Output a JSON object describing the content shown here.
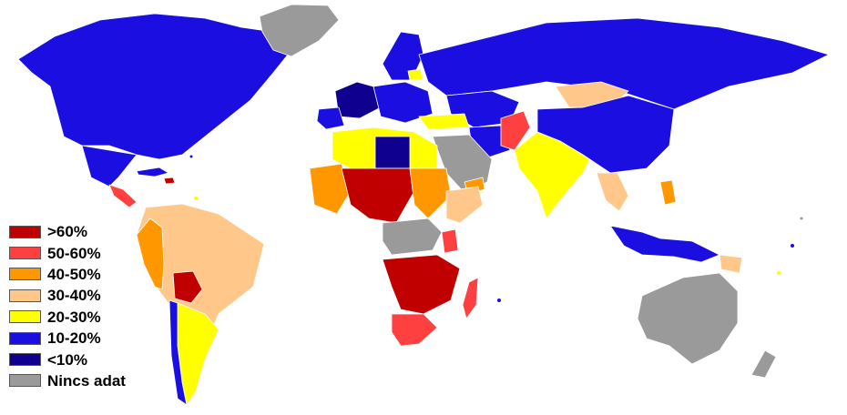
{
  "legend": {
    "items": [
      {
        "label": ">60%",
        "color": "#c00000"
      },
      {
        "label": "50-60%",
        "color": "#ff4040"
      },
      {
        "label": "40-50%",
        "color": "#ff9800"
      },
      {
        "label": "30-40%",
        "color": "#ffc88a"
      },
      {
        "label": "20-30%",
        "color": "#ffff00"
      },
      {
        "label": "10-20%",
        "color": "#1a0fe0"
      },
      {
        "label": "<10%",
        "color": "#10008f"
      },
      {
        "label": "Nincs adat",
        "color": "#9a9a9a"
      }
    ]
  }
}
